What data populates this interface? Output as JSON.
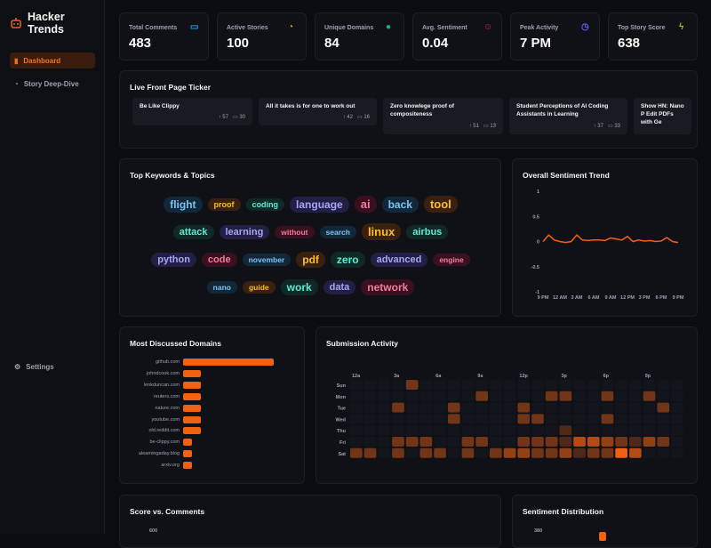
{
  "app": {
    "title": "Hacker Trends"
  },
  "sidebar": {
    "items": [
      {
        "label": "Dashboard",
        "icon": "bar-chart-icon",
        "active": true
      },
      {
        "label": "Story Deep-Dive",
        "icon": "rss-icon"
      }
    ],
    "settings": "Settings"
  },
  "stats": [
    {
      "label": "Total Comments",
      "value": "483",
      "icon": "comment-icon",
      "color": "#0ea5e9"
    },
    {
      "label": "Active Stories",
      "value": "100",
      "icon": "rss-icon",
      "color": "#f59e0b"
    },
    {
      "label": "Unique Domains",
      "value": "84",
      "icon": "globe-icon",
      "color": "#10b981"
    },
    {
      "label": "Avg. Sentiment",
      "value": "0.04",
      "icon": "smile-icon",
      "color": "#e11d48"
    },
    {
      "label": "Peak Activity",
      "value": "7 PM",
      "icon": "clock-icon",
      "color": "#6366f1"
    },
    {
      "label": "Top Story Score",
      "value": "638",
      "icon": "bolt-icon",
      "color": "#84cc16"
    }
  ],
  "ticker": {
    "title": "Live Front Page Ticker",
    "items": [
      {
        "title": "Be Like Clippy",
        "score": "57",
        "comments": "30"
      },
      {
        "title": "All it takes is for one to work out",
        "score": "42",
        "comments": "16"
      },
      {
        "title": "Zero knowlege proof of compositeness",
        "score": "51",
        "comments": "13"
      },
      {
        "title": "Student Perceptions of AI Coding Assistants in Learning",
        "score": "37",
        "comments": "33"
      },
      {
        "title": "Show HN: Nano P Edit PDFs with Ge",
        "score": "",
        "comments": ""
      }
    ]
  },
  "keywords": {
    "title": "Top Keywords & Topics",
    "rows": [
      [
        [
          "flight",
          "blue",
          12
        ],
        [
          "proof",
          "orange",
          9
        ],
        [
          "coding",
          "teal",
          9
        ],
        [
          "language",
          "purple",
          12
        ],
        [
          "ai",
          "pink",
          13
        ],
        [
          "back",
          "blue",
          12
        ],
        [
          "tool",
          "orange",
          13
        ]
      ],
      [
        [
          "attack",
          "teal",
          11
        ],
        [
          "learning",
          "purple",
          11
        ],
        [
          "without",
          "pink",
          8.5
        ],
        [
          "search",
          "blue",
          8.5
        ],
        [
          "linux",
          "orange",
          13
        ],
        [
          "airbus",
          "teal",
          11
        ]
      ],
      [
        [
          "python",
          "purple",
          11
        ],
        [
          "code",
          "pink",
          11
        ],
        [
          "november",
          "blue",
          8.5
        ],
        [
          "pdf",
          "orange",
          12
        ],
        [
          "zero",
          "teal",
          12
        ],
        [
          "advanced",
          "purple",
          11
        ],
        [
          "engine",
          "pink",
          8.5
        ]
      ],
      [
        [
          "nano",
          "blue",
          8.5
        ],
        [
          "guide",
          "orange",
          8.5
        ],
        [
          "work",
          "teal",
          12
        ],
        [
          "data",
          "purple",
          11
        ],
        [
          "network",
          "pink",
          12
        ]
      ]
    ]
  },
  "sentiment_trend": {
    "title": "Overall Sentiment Trend"
  },
  "domains": {
    "title": "Most Discussed Domains"
  },
  "activity": {
    "title": "Submission Activity"
  },
  "scatter": {
    "title": "Score vs. Comments",
    "ytick": "600"
  },
  "distribution": {
    "title": "Sentiment Distribution",
    "ytick": "380"
  },
  "chart_data": [
    {
      "type": "line",
      "title": "Overall Sentiment Trend",
      "ylim": [
        -1,
        1
      ],
      "yticks": [
        "1",
        "0.5",
        "0",
        "-0.5",
        "-1"
      ],
      "xticks": [
        "9 PM",
        "12 AM",
        "3 AM",
        "6 AM",
        "9 AM",
        "12 PM",
        "3 PM",
        "6 PM",
        "9 PM"
      ],
      "values": [
        0,
        0.13,
        0.03,
        0,
        -0.02,
        0,
        0.13,
        0.03,
        0.02,
        0.03,
        0.03,
        0.02,
        0.07,
        0.05,
        0.03,
        0.1,
        0,
        0.03,
        0.01,
        0.02,
        0,
        0.01,
        0.08,
        0,
        -0.02
      ],
      "color": "#f26111"
    },
    {
      "type": "bar",
      "orientation": "horizontal",
      "title": "Most Discussed Domains",
      "categories": [
        "github.com",
        "johndcook.com",
        "lenkduncan.com",
        "reuters.com",
        "nature.com",
        "youtube.com",
        "old.reddit.com",
        "be-clippy.com",
        "alearningaday.blog",
        "arxiv.org"
      ],
      "values": [
        10,
        2,
        2,
        2,
        2,
        2,
        2,
        1,
        1,
        1
      ]
    },
    {
      "type": "heatmap",
      "title": "Submission Activity",
      "rows": [
        "Sun",
        "Mon",
        "Tue",
        "Wed",
        "Thu",
        "Fri",
        "Sat"
      ],
      "xticks": [
        "12a",
        "3a",
        "6a",
        "9a",
        "12p",
        "3p",
        "6p",
        "9p"
      ],
      "cells": [
        [
          0,
          4,
          2
        ],
        [
          1,
          9,
          2
        ],
        [
          1,
          14,
          2
        ],
        [
          1,
          15,
          2
        ],
        [
          1,
          18,
          2
        ],
        [
          1,
          21,
          2
        ],
        [
          2,
          3,
          2
        ],
        [
          2,
          7,
          2
        ],
        [
          2,
          12,
          2
        ],
        [
          2,
          22,
          2
        ],
        [
          3,
          7,
          2
        ],
        [
          3,
          12,
          2
        ],
        [
          3,
          13,
          2
        ],
        [
          3,
          18,
          2
        ],
        [
          4,
          15,
          1
        ],
        [
          5,
          3,
          2
        ],
        [
          5,
          4,
          2
        ],
        [
          5,
          5,
          2
        ],
        [
          5,
          8,
          2
        ],
        [
          5,
          9,
          2
        ],
        [
          5,
          12,
          2
        ],
        [
          5,
          13,
          2
        ],
        [
          5,
          14,
          2
        ],
        [
          5,
          15,
          1
        ],
        [
          5,
          16,
          4
        ],
        [
          5,
          17,
          4
        ],
        [
          5,
          18,
          3
        ],
        [
          5,
          19,
          2
        ],
        [
          5,
          20,
          1
        ],
        [
          5,
          21,
          3
        ],
        [
          5,
          22,
          2
        ],
        [
          6,
          0,
          2
        ],
        [
          6,
          1,
          2
        ],
        [
          6,
          3,
          2
        ],
        [
          6,
          5,
          2
        ],
        [
          6,
          6,
          2
        ],
        [
          6,
          8,
          2
        ],
        [
          6,
          10,
          2
        ],
        [
          6,
          11,
          3
        ],
        [
          6,
          12,
          3
        ],
        [
          6,
          13,
          2
        ],
        [
          6,
          14,
          2
        ],
        [
          6,
          15,
          3
        ],
        [
          6,
          16,
          1
        ],
        [
          6,
          17,
          2
        ],
        [
          6,
          18,
          2
        ],
        [
          6,
          19,
          6
        ],
        [
          6,
          20,
          4
        ]
      ]
    }
  ]
}
